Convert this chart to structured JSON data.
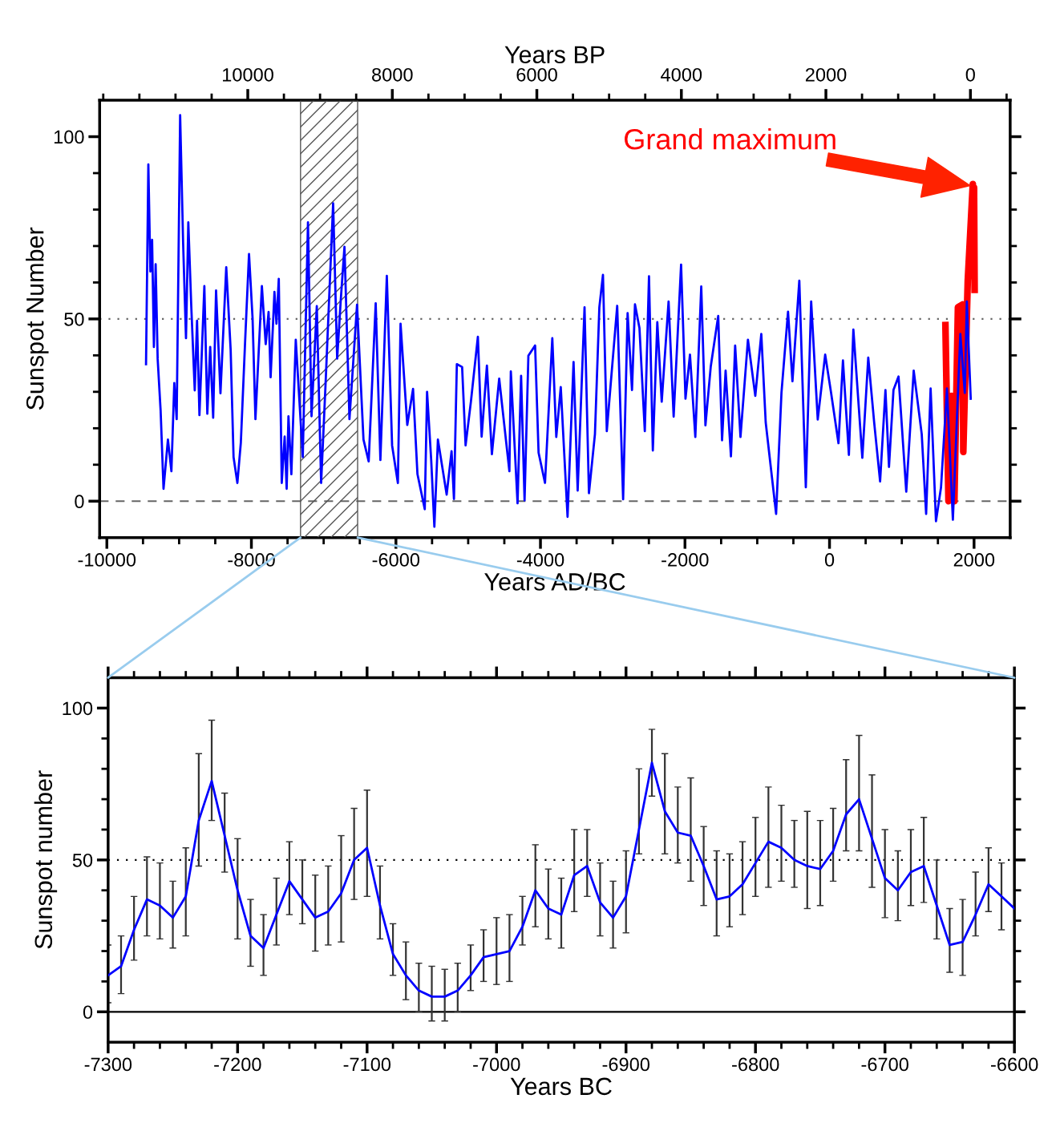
{
  "chart_data": [
    {
      "type": "line",
      "xlabel": "Years AD/BC",
      "ylabel": "Sunspot Number",
      "x2label": "Years BP",
      "xlim": [
        -10100,
        2500
      ],
      "ylim": [
        -10,
        110
      ],
      "x2lim": [
        12050,
        -550
      ],
      "xticks": [
        -10000,
        {
          "value": -9500,
          "label": null
        },
        {
          "value": -9000,
          "label": null
        },
        {
          "value": -8500,
          "label": null
        },
        -8000,
        {
          "value": -7500,
          "label": null
        },
        {
          "value": -7000,
          "label": null
        },
        {
          "value": -6500,
          "label": null
        },
        -6000,
        {
          "value": -5500,
          "label": null
        },
        {
          "value": -5000,
          "label": null
        },
        {
          "value": -4500,
          "label": null
        },
        -4000,
        {
          "value": -3500,
          "label": null
        },
        {
          "value": -3000,
          "label": null
        },
        {
          "value": -2500,
          "label": null
        },
        -2000,
        {
          "value": -1500,
          "label": null
        },
        {
          "value": -1000,
          "label": null
        },
        {
          "value": -500,
          "label": null
        },
        0,
        {
          "value": 500,
          "label": null
        },
        {
          "value": 1000,
          "label": null
        },
        {
          "value": 1500,
          "label": null
        },
        2000
      ],
      "x2ticks": [
        {
          "value": 12000,
          "label": null
        },
        {
          "value": 11500,
          "label": null
        },
        {
          "value": 11000,
          "label": null
        },
        {
          "value": 10500,
          "label": null
        },
        10000,
        {
          "value": 9500,
          "label": null
        },
        {
          "value": 9000,
          "label": null
        },
        {
          "value": 8500,
          "label": null
        },
        8000,
        {
          "value": 7500,
          "label": null
        },
        {
          "value": 7000,
          "label": null
        },
        {
          "value": 6500,
          "label": null
        },
        6000,
        {
          "value": 5500,
          "label": null
        },
        {
          "value": 5000,
          "label": null
        },
        {
          "value": 4500,
          "label": null
        },
        4000,
        {
          "value": 3500,
          "label": null
        },
        {
          "value": 3000,
          "label": null
        },
        {
          "value": 2500,
          "label": null
        },
        2000,
        {
          "value": 1500,
          "label": null
        },
        {
          "value": 1000,
          "label": null
        },
        {
          "value": 500,
          "label": null
        },
        0,
        {
          "value": -500,
          "label": null
        }
      ],
      "yticks": [
        0,
        {
          "value": 10,
          "label": null
        },
        {
          "value": 20,
          "label": null
        },
        {
          "value": 30,
          "label": null
        },
        {
          "value": 40,
          "label": null
        },
        50,
        {
          "value": 60,
          "label": null
        },
        {
          "value": 70,
          "label": null
        },
        {
          "value": 80,
          "label": null
        },
        {
          "value": 90,
          "label": null
        },
        100
      ],
      "ref_lines": [
        {
          "axis": "y",
          "value": 50,
          "line_style": "dotted",
          "color": "#666666"
        },
        {
          "axis": "y",
          "value": 0,
          "line_style": "dashed",
          "color": "#666666"
        }
      ],
      "bands": [
        {
          "axis": "x",
          "from": -7320,
          "to": -6530,
          "color": "#555555"
        }
      ],
      "annotations": [
        "Grand maximum"
      ],
      "series": [
        {
          "color": "#0000ff",
          "x": [
            -9458,
            -9426,
            -9398,
            -9374,
            -9349,
            -9325,
            -9297,
            -9256,
            -9216,
            -9155,
            -9107,
            -9067,
            -9034,
            -8986,
            -8945,
            -8905,
            -8873,
            -8832,
            -8784,
            -8752,
            -8719,
            -8651,
            -8610,
            -8570,
            -8529,
            -8489,
            -8428,
            -8348,
            -8287,
            -8247,
            -8194,
            -8146,
            -8085,
            -8033,
            -7984,
            -7944,
            -7855,
            -7802,
            -7762,
            -7734,
            -7681,
            -7653,
            -7621,
            -7580,
            -7540,
            -7512,
            -7487,
            -7447,
            -7386,
            -7289,
            -7217,
            -7168,
            -7095,
            -7035,
            -6974,
            -6869,
            -6813,
            -6764,
            -6712,
            -6643,
            -6538,
            -6449,
            -6377,
            -6280,
            -6215,
            -6126,
            -6053,
            -5973,
            -5936,
            -5843,
            -5763,
            -5702,
            -5601,
            -5569,
            -5512,
            -5468,
            -5419,
            -5298,
            -5230,
            -5197,
            -5157,
            -5084,
            -5036,
            -4963,
            -4866,
            -4814,
            -4741,
            -4672,
            -4571,
            -4430,
            -4410,
            -4317,
            -4268,
            -4220,
            -4167,
            -4074,
            -4026,
            -3937,
            -3836,
            -3781,
            -3719,
            -3625,
            -3542,
            -3485,
            -3390,
            -3329,
            -3246,
            -3185,
            -3135,
            -3082,
            -2938,
            -2856,
            -2794,
            -2733,
            -2692,
            -2630,
            -2556,
            -2498,
            -2445,
            -2383,
            -2322,
            -2227,
            -2157,
            -2054,
            -1993,
            -1931,
            -1857,
            -1775,
            -1717,
            -1643,
            -1540,
            -1487,
            -1438,
            -1364,
            -1306,
            -1232,
            -1129,
            -1027,
            -944,
            -883,
            -739,
            -665,
            -574,
            -513,
            -418,
            -328,
            -254,
            -163,
            -60,
            22,
            124,
            186,
            268,
            330,
            454,
            536,
            618,
            700,
            774,
            823,
            885,
            955,
            1062,
            1165,
            1276,
            1337,
            1399,
            1473,
            1543,
            1625,
            1707,
            1810,
            1872,
            1900,
            1954
          ],
          "values": [
            37.6,
            92.4,
            63,
            71.7,
            42.3,
            65,
            39,
            24.8,
            3.4,
            16.9,
            8.2,
            32.4,
            22.5,
            105.9,
            71,
            44.7,
            76.5,
            53.5,
            30.4,
            49.5,
            23.6,
            59,
            24,
            42.3,
            22.9,
            57.8,
            29.6,
            64.2,
            41.5,
            12.1,
            5,
            16.1,
            44.7,
            67.8,
            50.3,
            22.5,
            59,
            43.1,
            51.9,
            34,
            57.4,
            48.7,
            61,
            5,
            17.7,
            3.4,
            23.3,
            7.4,
            44.3,
            12.1,
            76.5,
            23.3,
            53.5,
            5,
            32,
            81.7,
            39.1,
            55,
            69.8,
            22.5,
            53.9,
            16.9,
            10.9,
            54.3,
            11.3,
            61.8,
            15.3,
            5,
            48.7,
            20.9,
            30.8,
            7.4,
            -2.2,
            30,
            11.3,
            -7,
            16.9,
            1.8,
            13.7,
            0.6,
            37.6,
            36.8,
            15.3,
            27.2,
            45.1,
            17.7,
            37.2,
            12.9,
            33.6,
            8.2,
            35.6,
            -0.6,
            34.4,
            0.2,
            39.9,
            42.7,
            13.3,
            5,
            44.7,
            17.6,
            31.3,
            -4.3,
            38.2,
            2.9,
            53.2,
            2.2,
            18.4,
            53.2,
            62.1,
            19.2,
            53.6,
            0.5,
            51.6,
            30.5,
            54,
            47.5,
            19.2,
            61.7,
            13.9,
            49.1,
            27.3,
            54.8,
            23.2,
            64.9,
            28.1,
            40.2,
            17.6,
            58.9,
            20.8,
            37,
            50.8,
            16.7,
            35.8,
            12.3,
            42.7,
            17.6,
            44.3,
            28.9,
            45.9,
            21.6,
            -3.5,
            29.7,
            52,
            32.9,
            60.5,
            3.8,
            54.8,
            22.4,
            40.2,
            29.7,
            15.9,
            38.6,
            12.7,
            47.1,
            11.9,
            39.4,
            21.6,
            5.4,
            30.5,
            9.4,
            30.5,
            34.2,
            2.6,
            35.8,
            18.4,
            -3.5,
            30.9,
            -5.5,
            3.8,
            30.9,
            -5.1,
            45.9,
            29.7,
            54.8,
            28.1
          ]
        },
        {
          "color": "#ff0000",
          "x": [
            1604,
            1646,
            1687,
            1728,
            1777,
            1843,
            1851,
            1913,
            1983,
            1992,
            2000,
            2008
          ],
          "values": [
            48.3,
            0,
            28.9,
            0,
            53.2,
            54,
            13.5,
            60.5,
            87,
            62,
            86,
            58
          ]
        }
      ]
    },
    {
      "type": "line",
      "xlabel": "Years BC",
      "ylabel": "Sunspot number",
      "xlim": [
        -7300,
        -6600
      ],
      "ylim": [
        -10,
        110
      ],
      "xticks": [
        -7300,
        {
          "value": -7280,
          "label": null
        },
        {
          "value": -7260,
          "label": null
        },
        {
          "value": -7240,
          "label": null
        },
        {
          "value": -7220,
          "label": null
        },
        -7200,
        {
          "value": -7180,
          "label": null
        },
        {
          "value": -7160,
          "label": null
        },
        {
          "value": -7140,
          "label": null
        },
        {
          "value": -7120,
          "label": null
        },
        -7100,
        {
          "value": -7080,
          "label": null
        },
        {
          "value": -7060,
          "label": null
        },
        {
          "value": -7040,
          "label": null
        },
        {
          "value": -7020,
          "label": null
        },
        -7000,
        {
          "value": -6980,
          "label": null
        },
        {
          "value": -6960,
          "label": null
        },
        {
          "value": -6940,
          "label": null
        },
        {
          "value": -6920,
          "label": null
        },
        -6900,
        {
          "value": -6880,
          "label": null
        },
        {
          "value": -6860,
          "label": null
        },
        {
          "value": -6840,
          "label": null
        },
        {
          "value": -6820,
          "label": null
        },
        -6800,
        {
          "value": -6780,
          "label": null
        },
        {
          "value": -6760,
          "label": null
        },
        {
          "value": -6740,
          "label": null
        },
        {
          "value": -6720,
          "label": null
        },
        -6700,
        {
          "value": -6680,
          "label": null
        },
        {
          "value": -6660,
          "label": null
        },
        {
          "value": -6640,
          "label": null
        },
        {
          "value": -6620,
          "label": null
        },
        -6600
      ],
      "yticks": [
        0,
        {
          "value": 10,
          "label": null
        },
        {
          "value": 20,
          "label": null
        },
        {
          "value": 30,
          "label": null
        },
        {
          "value": 40,
          "label": null
        },
        50,
        {
          "value": 60,
          "label": null
        },
        {
          "value": 70,
          "label": null
        },
        {
          "value": 80,
          "label": null
        },
        {
          "value": 90,
          "label": null
        },
        100
      ],
      "ref_lines": [
        {
          "axis": "y",
          "value": 50,
          "line_style": "dotted",
          "color": "#000000"
        },
        {
          "axis": "y",
          "value": 0,
          "line_style": "solid",
          "color": "#000000"
        }
      ],
      "x": [
        -7300,
        -7290,
        -7280,
        -7270,
        -7260,
        -7250,
        -7240,
        -7230,
        -7220,
        -7210,
        -7200,
        -7190,
        -7180,
        -7170,
        -7160,
        -7150,
        -7140,
        -7130,
        -7120,
        -7110,
        -7100,
        -7090,
        -7080,
        -7070,
        -7060,
        -7050,
        -7040,
        -7030,
        -7020,
        -7010,
        -7000,
        -6990,
        -6980,
        -6970,
        -6960,
        -6950,
        -6940,
        -6930,
        -6920,
        -6910,
        -6900,
        -6890,
        -6880,
        -6870,
        -6860,
        -6850,
        -6840,
        -6830,
        -6820,
        -6810,
        -6800,
        -6790,
        -6780,
        -6770,
        -6760,
        -6750,
        -6740,
        -6730,
        -6720,
        -6710,
        -6700,
        -6690,
        -6680,
        -6670,
        -6660,
        -6650,
        -6640,
        -6630,
        -6620,
        -6610,
        -6600
      ],
      "series": [
        {
          "color": "#0000ff",
          "values": [
            12,
            15,
            27,
            37,
            35,
            31,
            38,
            63,
            76,
            58,
            40,
            25,
            21,
            32,
            43,
            37,
            31,
            33,
            39,
            50,
            54,
            35,
            19,
            12,
            7,
            5,
            5,
            7,
            12,
            18,
            19,
            20,
            28,
            40,
            34,
            32,
            45,
            48,
            36,
            31,
            38,
            60,
            82,
            66,
            59,
            58,
            48,
            37,
            38,
            42,
            49,
            56,
            54,
            50,
            48,
            47,
            53,
            65,
            70,
            57,
            44,
            40,
            46,
            48,
            35,
            22,
            23,
            32,
            42,
            38,
            34
          ],
          "errors": [
            [
              3,
              22
            ],
            [
              6,
              25
            ],
            [
              17,
              38
            ],
            [
              25,
              51
            ],
            [
              24,
              49
            ],
            [
              21,
              43
            ],
            [
              25,
              54
            ],
            [
              48,
              85
            ],
            [
              63,
              96
            ],
            [
              46,
              72
            ],
            [
              24,
              57
            ],
            [
              15,
              37
            ],
            [
              12,
              32
            ],
            [
              22,
              44
            ],
            [
              32,
              56
            ],
            [
              29,
              50
            ],
            [
              20,
              45
            ],
            [
              22,
              48
            ],
            [
              23,
              58
            ],
            [
              37,
              67
            ],
            [
              38,
              73
            ],
            [
              24,
              48
            ],
            [
              12,
              29
            ],
            [
              4,
              23
            ],
            [
              0,
              16
            ],
            [
              -3,
              15
            ],
            [
              -3,
              14
            ],
            [
              0,
              16
            ],
            [
              7,
              22
            ],
            [
              10,
              27
            ],
            [
              9,
              31
            ],
            [
              10,
              32
            ],
            [
              22,
              38
            ],
            [
              28,
              55
            ],
            [
              24,
              47
            ],
            [
              21,
              44
            ],
            [
              33,
              60
            ],
            [
              38,
              60
            ],
            [
              25,
              49
            ],
            [
              21,
              43
            ],
            [
              26,
              53
            ],
            [
              52,
              80
            ],
            [
              71,
              93
            ],
            [
              52,
              85
            ],
            [
              49,
              74
            ],
            [
              43,
              77
            ],
            [
              35,
              61
            ],
            [
              25,
              53
            ],
            [
              28,
              52
            ],
            [
              32,
              56
            ],
            [
              38,
              64
            ],
            [
              41,
              74
            ],
            [
              43,
              68
            ],
            [
              41,
              63
            ],
            [
              34,
              66
            ],
            [
              35,
              63
            ],
            [
              43,
              67
            ],
            [
              53,
              83
            ],
            [
              53,
              91
            ],
            [
              41,
              78
            ],
            [
              31,
              60
            ],
            [
              30,
              53
            ],
            [
              35,
              60
            ],
            [
              36,
              64
            ],
            [
              24,
              50
            ],
            [
              13,
              34
            ],
            [
              12,
              37
            ],
            [
              25,
              46
            ],
            [
              33,
              54
            ],
            [
              27,
              49
            ],
            null
          ]
        }
      ]
    }
  ]
}
